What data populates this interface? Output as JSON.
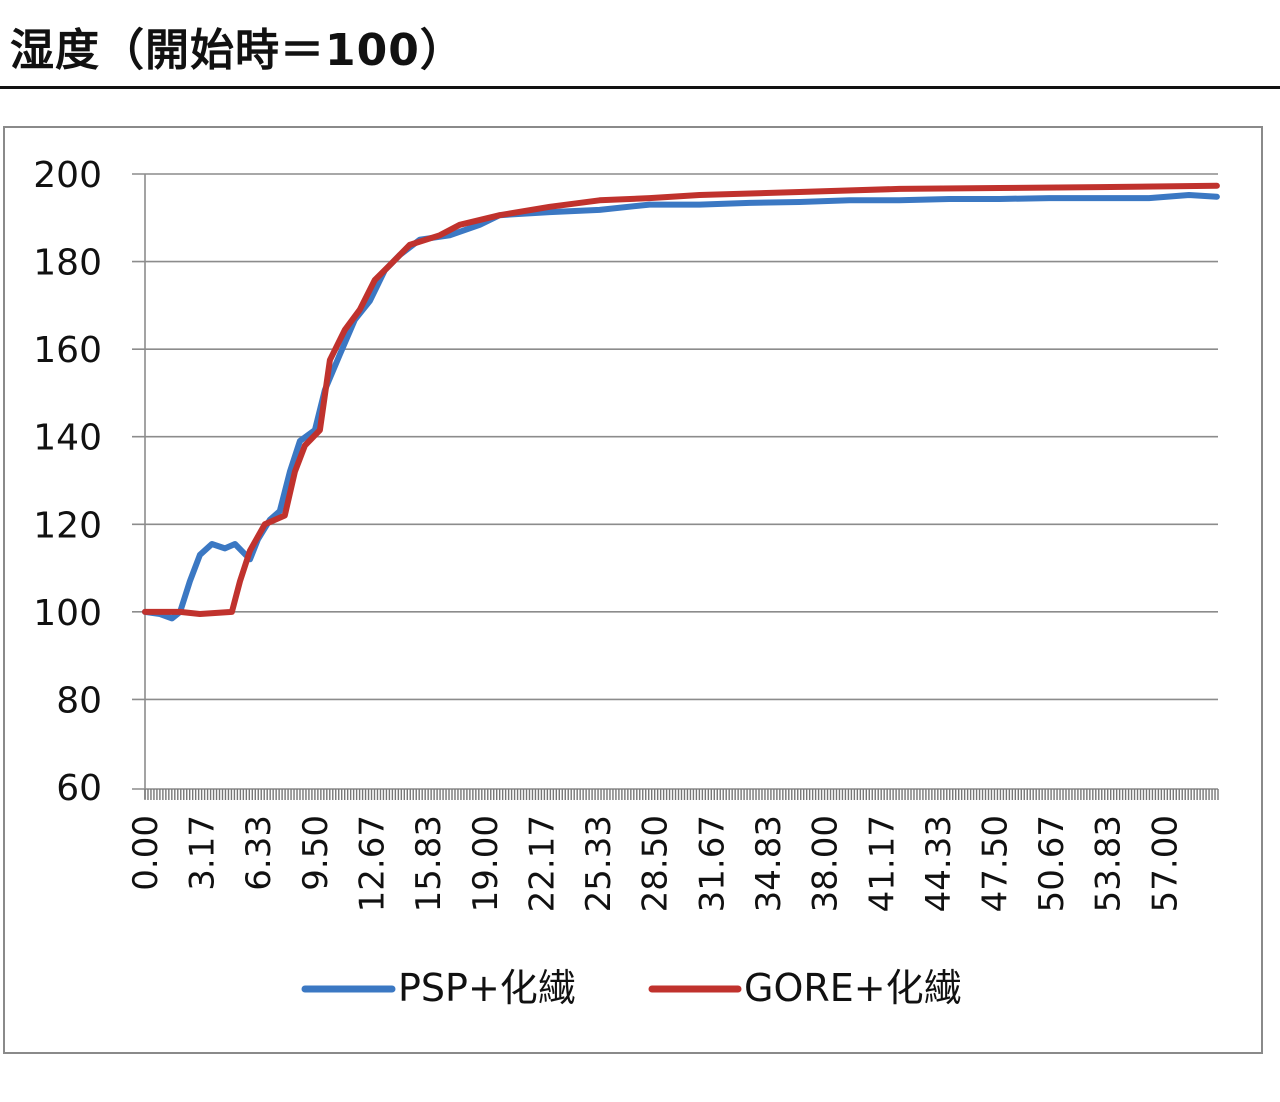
{
  "chart_data": {
    "type": "line",
    "title": "湿度（開始時＝100）",
    "xlabel": "",
    "ylabel": "",
    "ylim": [
      60,
      200
    ],
    "yticks": [
      60,
      80,
      100,
      120,
      140,
      160,
      180,
      200
    ],
    "xlim": [
      0,
      60
    ],
    "xtick_labels": [
      "0.00",
      "3.17",
      "6.33",
      "9.50",
      "12.67",
      "15.83",
      "19.00",
      "22.17",
      "25.33",
      "28.50",
      "31.67",
      "34.83",
      "38.00",
      "41.17",
      "44.33",
      "47.50",
      "50.67",
      "53.83",
      "57.00"
    ],
    "grid": "horizontal",
    "legend_position": "bottom",
    "series": [
      {
        "name": "PSP+化繊",
        "color": "#3b78c3",
        "x": [
          0,
          0.84,
          1.51,
          1.96,
          2.51,
          3.07,
          3.74,
          4.47,
          5.03,
          5.87,
          6.31,
          6.98,
          7.54,
          8.1,
          8.66,
          9.5,
          10.06,
          10.89,
          11.73,
          12.57,
          13.41,
          14.25,
          15.36,
          17.04,
          18.72,
          19.83,
          22.63,
          25.42,
          28.21,
          31.01,
          33.8,
          36.59,
          39.39,
          42.18,
          44.97,
          47.77,
          50.56,
          53.35,
          56.15,
          58.38,
          59.94
        ],
        "y": [
          100,
          99.5,
          98.5,
          100,
          107,
          113,
          115.5,
          114.5,
          115.5,
          112,
          116.5,
          121,
          123,
          132,
          139,
          141.5,
          150.7,
          158.7,
          166.7,
          171,
          178,
          181.5,
          185,
          186,
          188.4,
          190.6,
          191.3,
          191.8,
          193,
          193,
          193.4,
          193.6,
          194,
          194,
          194.3,
          194.3,
          194.5,
          194.5,
          194.5,
          195.2,
          194.8
        ]
      },
      {
        "name": "GORE+化繊",
        "color": "#c0322d",
        "x": [
          0,
          1.96,
          3.07,
          4.86,
          5.31,
          5.87,
          6.7,
          7.82,
          8.38,
          8.94,
          9.78,
          10.34,
          11.17,
          12.01,
          12.85,
          13.69,
          14.8,
          16.48,
          17.6,
          19.83,
          22.63,
          25.42,
          28.21,
          31.01,
          36.59,
          42.18,
          47.77,
          53.35,
          59.94
        ],
        "y": [
          100,
          100,
          99.5,
          100,
          107,
          114,
          120,
          122,
          132,
          138,
          141.5,
          157.5,
          164.4,
          169,
          175.8,
          179.2,
          183.8,
          186,
          188.4,
          190.6,
          192.5,
          194,
          194.5,
          195.2,
          195.9,
          196.6,
          196.8,
          197,
          197.3
        ]
      }
    ]
  }
}
